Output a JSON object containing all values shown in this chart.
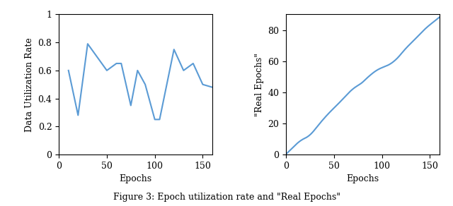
{
  "left_plot": {
    "x": [
      10,
      20,
      30,
      50,
      60,
      65,
      75,
      82,
      90,
      100,
      105,
      120,
      130,
      140,
      150,
      160
    ],
    "y": [
      0.6,
      0.28,
      0.79,
      0.6,
      0.65,
      0.65,
      0.35,
      0.6,
      0.5,
      0.25,
      0.25,
      0.75,
      0.6,
      0.65,
      0.5,
      0.48
    ],
    "xlabel": "Epochs",
    "ylabel": "Data Utilization Rate",
    "xlim": [
      0,
      160
    ],
    "ylim": [
      0,
      1
    ],
    "xticks": [
      0,
      50,
      100,
      150
    ],
    "ytick_vals": [
      0,
      0.2,
      0.4,
      0.6,
      0.8,
      1
    ],
    "ytick_labels": [
      "0",
      "0.2",
      "0.4",
      "0.6",
      "0.8",
      "1"
    ],
    "line_color": "#5b9bd5"
  },
  "right_plot": {
    "xlabel": "Epochs",
    "ylabel": "\"Real Epochs\"",
    "xlim": [
      0,
      160
    ],
    "ylim": [
      0,
      90
    ],
    "xticks": [
      0,
      50,
      100,
      150
    ],
    "yticks": [
      0,
      20,
      40,
      60,
      80
    ],
    "line_color": "#5b9bd5"
  },
  "caption": "Figure 3: Epoch utilization rate and \"Real Epochs\"",
  "caption_fontsize": 9,
  "line_width": 1.5,
  "font_family": "serif"
}
